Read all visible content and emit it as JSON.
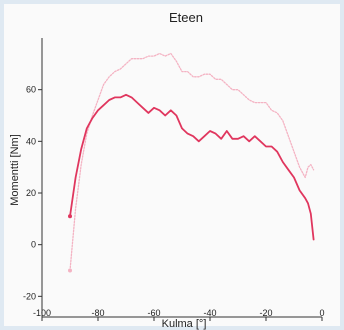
{
  "chart_data": {
    "type": "line",
    "title": "Eteen",
    "xlabel": "Kulma [°]",
    "ylabel": "Momentti [Nm]",
    "xlim": [
      -100,
      0
    ],
    "ylim": [
      -28,
      80
    ],
    "xticks": [
      -100,
      -80,
      -60,
      -40,
      -20,
      0
    ],
    "yticks": [
      -20,
      0,
      20,
      40,
      60
    ],
    "grid": false,
    "series": [
      {
        "color": "#f4b3c3",
        "style": "dotted",
        "x": [
          -90,
          -88,
          -86,
          -84,
          -82,
          -80,
          -78,
          -76,
          -74,
          -72,
          -70,
          -68,
          -66,
          -64,
          -62,
          -60,
          -58,
          -56,
          -54,
          -52,
          -50,
          -48,
          -46,
          -44,
          -42,
          -40,
          -38,
          -36,
          -34,
          -32,
          -30,
          -28,
          -26,
          -24,
          -22,
          -20,
          -18,
          -16,
          -14,
          -12,
          -10,
          -8,
          -6,
          -5,
          -4,
          -3
        ],
        "y": [
          -10,
          14,
          31,
          43,
          50,
          56,
          62,
          65,
          67,
          68,
          70,
          72,
          72,
          72,
          73,
          73,
          74,
          73,
          74,
          71,
          67,
          67,
          65,
          65,
          66,
          66,
          64,
          64,
          62,
          60,
          60,
          58,
          56,
          55,
          55,
          55,
          52,
          51,
          48,
          42,
          36,
          30,
          26,
          30,
          31,
          29
        ]
      },
      {
        "color": "#e0365e",
        "style": "solid",
        "x": [
          -90,
          -88,
          -86,
          -84,
          -82,
          -80,
          -78,
          -76,
          -74,
          -72,
          -70,
          -68,
          -66,
          -64,
          -62,
          -60,
          -58,
          -56,
          -54,
          -52,
          -50,
          -48,
          -46,
          -44,
          -42,
          -40,
          -38,
          -36,
          -34,
          -32,
          -30,
          -28,
          -26,
          -24,
          -22,
          -20,
          -18,
          -16,
          -14,
          -12,
          -10,
          -8,
          -6,
          -5,
          -4,
          -3
        ],
        "y": [
          11,
          26,
          37,
          45,
          49,
          52,
          54,
          56,
          57,
          57,
          58,
          57,
          55,
          53,
          51,
          53,
          52,
          50,
          52,
          50,
          45,
          43,
          42,
          40,
          42,
          44,
          43,
          41,
          44,
          41,
          41,
          42,
          40,
          42,
          40,
          38,
          38,
          36,
          32,
          29,
          26,
          21,
          18,
          16,
          12,
          2
        ]
      }
    ]
  }
}
